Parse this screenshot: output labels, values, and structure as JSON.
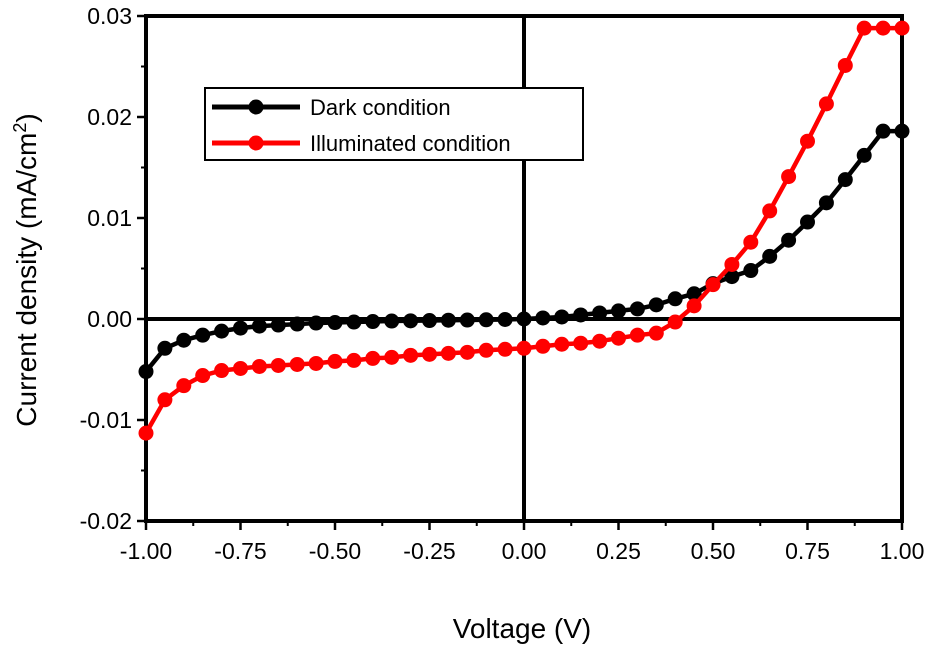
{
  "chart_data": {
    "type": "line",
    "xlabel": "Voltage (V)",
    "ylabel": "Current density  (mA/cm",
    "ylabel_sup": "2",
    "ylabel_close": ")",
    "xlim": [
      -1.0,
      1.0
    ],
    "ylim": [
      -0.02,
      0.03
    ],
    "x_ticks": [
      -1.0,
      -0.75,
      -0.5,
      -0.25,
      0.0,
      0.25,
      0.5,
      0.75,
      1.0
    ],
    "x_tick_labels": [
      "-1.00",
      "-0.75",
      "-0.50",
      "-0.25",
      "0.00",
      "0.25",
      "0.50",
      "0.75",
      "1.00"
    ],
    "y_ticks": [
      -0.02,
      -0.01,
      0.0,
      0.01,
      0.02,
      0.03
    ],
    "y_tick_labels": [
      "-0.02",
      "-0.01",
      "0.00",
      "0.01",
      "0.02",
      "0.03"
    ],
    "legend_position": "top-left",
    "grid": false,
    "series": [
      {
        "name": "Dark condition",
        "color": "#000000",
        "x": [
          -1.0,
          -0.95,
          -0.9,
          -0.85,
          -0.8,
          -0.75,
          -0.7,
          -0.65,
          -0.6,
          -0.55,
          -0.5,
          -0.45,
          -0.4,
          -0.35,
          -0.3,
          -0.25,
          -0.2,
          -0.15,
          -0.1,
          -0.05,
          0.0,
          0.05,
          0.1,
          0.15,
          0.2,
          0.25,
          0.3,
          0.35,
          0.4,
          0.45,
          0.5,
          0.55,
          0.6,
          0.65,
          0.7,
          0.75,
          0.8,
          0.85,
          0.9,
          0.95,
          1.0
        ],
        "y": [
          -0.0052,
          -0.0029,
          -0.0021,
          -0.0016,
          -0.0012,
          -0.0009,
          -0.0007,
          -0.0006,
          -0.0005,
          -0.0004,
          -0.00035,
          -0.0003,
          -0.00025,
          -0.0002,
          -0.00018,
          -0.00015,
          -0.00012,
          -0.0001,
          -8e-05,
          -5e-05,
          0.0,
          0.0001,
          0.0002,
          0.0004,
          0.0006,
          0.0008,
          0.001,
          0.0014,
          0.002,
          0.0025,
          0.0035,
          0.0042,
          0.0048,
          0.0062,
          0.0078,
          0.0096,
          0.0115,
          0.0138,
          0.0162,
          0.0186,
          0.0186
        ]
      },
      {
        "name": "Illuminated condition",
        "color": "#ff0000",
        "x": [
          -1.0,
          -0.95,
          -0.9,
          -0.85,
          -0.8,
          -0.75,
          -0.7,
          -0.65,
          -0.6,
          -0.55,
          -0.5,
          -0.45,
          -0.4,
          -0.35,
          -0.3,
          -0.25,
          -0.2,
          -0.15,
          -0.1,
          -0.05,
          0.0,
          0.05,
          0.1,
          0.15,
          0.2,
          0.25,
          0.3,
          0.35,
          0.4,
          0.45,
          0.5,
          0.55,
          0.6,
          0.65,
          0.7,
          0.75,
          0.8,
          0.85,
          0.9,
          0.95,
          1.0
        ],
        "y": [
          -0.0113,
          -0.008,
          -0.0066,
          -0.0056,
          -0.0051,
          -0.0049,
          -0.0047,
          -0.0046,
          -0.0045,
          -0.0044,
          -0.0042,
          -0.0041,
          -0.0039,
          -0.0038,
          -0.0036,
          -0.0035,
          -0.0034,
          -0.0033,
          -0.0031,
          -0.003,
          -0.0029,
          -0.0027,
          -0.0025,
          -0.0024,
          -0.0022,
          -0.0019,
          -0.0016,
          -0.0014,
          -0.0003,
          0.0013,
          0.0034,
          0.0054,
          0.0076,
          0.0107,
          0.0141,
          0.0176,
          0.0213,
          0.0251,
          0.0288,
          0.0288,
          0.0288
        ]
      }
    ]
  }
}
